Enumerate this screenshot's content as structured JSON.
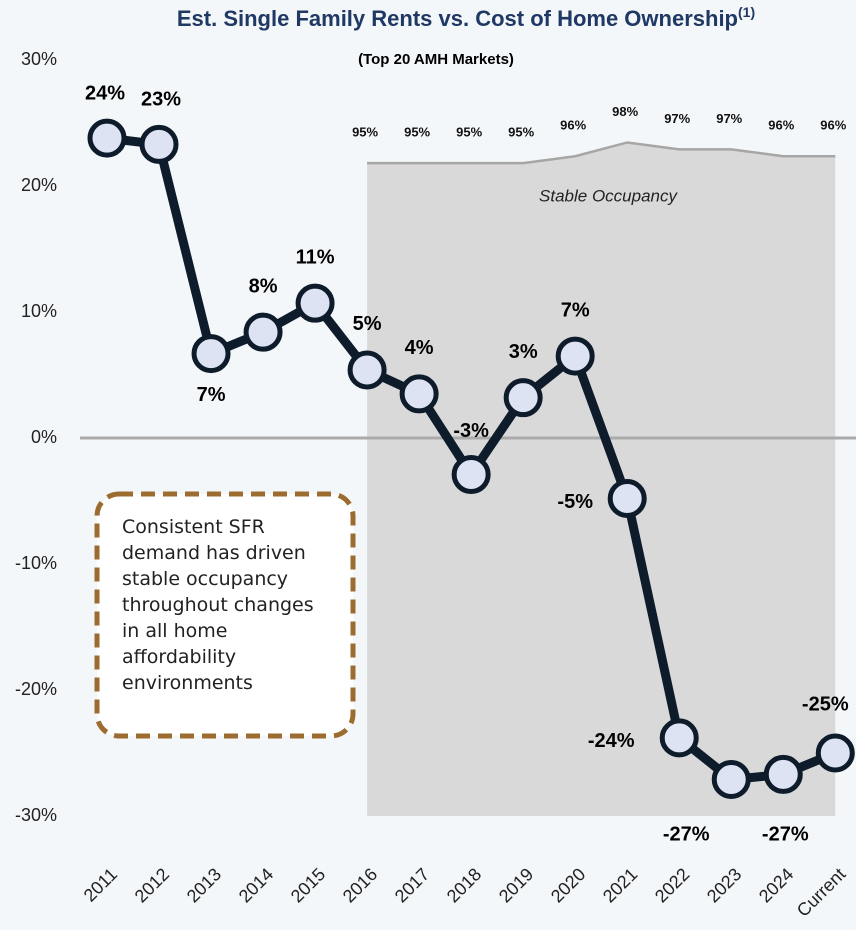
{
  "chart_data": {
    "type": "line",
    "title": "Est. Single Family Rents vs. Cost of Home Ownership",
    "title_note": "(1)",
    "subtitle": "(Top 20 AMH Markets)",
    "annotations": [
      "Stable Occupancy",
      "Consistent SFR demand has driven stable occupancy throughout changes in all home affordability environments"
    ],
    "categories": [
      "2011",
      "2012",
      "2013",
      "2014",
      "2015",
      "2016",
      "2017",
      "2018",
      "2019",
      "2020",
      "2021",
      "2022",
      "2023",
      "2024",
      "Current"
    ],
    "series": [
      {
        "name": "Est. Single Family Rents vs. Cost of Home Ownership",
        "color": "#0d1b2a",
        "values": [
          23.8,
          23.3,
          6.7,
          8.4,
          10.7,
          5.4,
          3.5,
          -2.9,
          3.2,
          6.5,
          -4.8,
          -23.8,
          -27.1,
          -26.7,
          -25.0
        ],
        "value_labels": [
          "24%",
          "23%",
          "7%",
          "8%",
          "11%",
          "5%",
          "4%",
          "-3%",
          "3%",
          "7%",
          "-5%",
          "-24%",
          "-27%",
          "-27%",
          "-25%"
        ]
      },
      {
        "name": "Stable Occupancy",
        "color": "#a6a6a6",
        "axis": "y2",
        "values": [
          null,
          null,
          null,
          null,
          null,
          95,
          95,
          95,
          95,
          96,
          98,
          97,
          97,
          96,
          96
        ],
        "value_labels": [
          null,
          null,
          null,
          null,
          null,
          "95%",
          "95%",
          "95%",
          "95%",
          "96%",
          "98%",
          "97%",
          "97%",
          "96%",
          "96%"
        ]
      }
    ],
    "ylim": [
      -30,
      30
    ],
    "yticks": [
      {
        "value": 30,
        "label": "30%"
      },
      {
        "value": 20,
        "label": "20%"
      },
      {
        "value": 10,
        "label": "10%"
      },
      {
        "value": 0,
        "label": "0%"
      },
      {
        "value": -10,
        "label": "-10%"
      },
      {
        "value": -20,
        "label": "-20%"
      },
      {
        "value": -30,
        "label": "-30%"
      }
    ],
    "y2lim": [
      0,
      110
    ]
  }
}
